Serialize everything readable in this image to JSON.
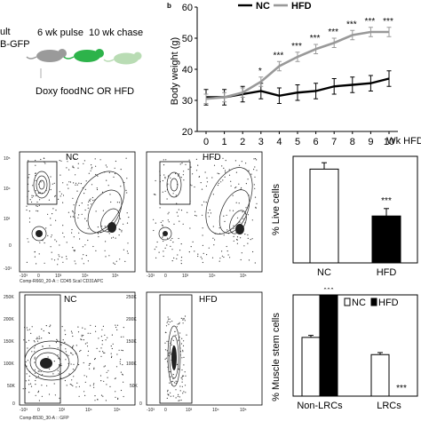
{
  "schematic": {
    "line1": "ult",
    "line2": "B-GFP",
    "pulse": "6 wk pulse",
    "chase": "10 wk chase",
    "doxy": "Doxy food",
    "diet": "NC OR HFD"
  },
  "panel_b_label": "b",
  "flow_top": {
    "gates": [
      "NC",
      "HFD"
    ],
    "xaxis": "Comp-R660_20-A :: CD45 ScaI CD31APC",
    "x_ticks": [
      "-10³",
      "0",
      "10³",
      "10⁴",
      "10⁵"
    ],
    "y_ticks": [
      "10⁵",
      "10⁴",
      "10³",
      "0",
      "-10³"
    ]
  },
  "flow_bottom": {
    "gates": [
      "NC",
      "HFD"
    ],
    "xaxis": "Comp-B530_30-A :: GFP",
    "y_ticks": [
      "250K",
      "200K",
      "150K",
      "100K",
      "50K",
      "0"
    ],
    "x_ticks": [
      "-10³",
      "0",
      "10³",
      "10⁴",
      "10⁵"
    ]
  },
  "chart_data": [
    {
      "type": "line",
      "ylabel": "Body weight (g)",
      "xlabel": "Wk HFD",
      "x": [
        0,
        1,
        2,
        3,
        4,
        5,
        6,
        7,
        8,
        9,
        10
      ],
      "ylim": [
        20,
        60
      ],
      "yticks": [
        20,
        30,
        40,
        50,
        60
      ],
      "legend": "top",
      "series": [
        {
          "name": "NC",
          "color": "#000000",
          "values": [
            31,
            31,
            32,
            33,
            31.5,
            32.5,
            33,
            34.5,
            35,
            35.5,
            37
          ],
          "errors": [
            2.5,
            2.5,
            2.5,
            2.5,
            2.5,
            2.5,
            2.5,
            2.5,
            2.5,
            2.5,
            2.5
          ]
        },
        {
          "name": "HFD",
          "color": "#999999",
          "values": [
            30.5,
            31,
            32.5,
            36,
            41,
            44,
            46.5,
            48.5,
            51,
            52,
            52
          ],
          "errors": [
            1.5,
            1.5,
            1.5,
            1.5,
            1.5,
            1.5,
            1.5,
            1.5,
            1.5,
            1.5,
            1.5
          ]
        }
      ],
      "annotations": [
        {
          "x": 3,
          "text": "*"
        },
        {
          "x": 4,
          "text": "***"
        },
        {
          "x": 5,
          "text": "***"
        },
        {
          "x": 6,
          "text": "***"
        },
        {
          "x": 7,
          "text": "***"
        },
        {
          "x": 8,
          "text": "***"
        },
        {
          "x": 9,
          "text": "***"
        },
        {
          "x": 10,
          "text": "***"
        }
      ]
    },
    {
      "type": "bar",
      "ylabel": "% Live cells",
      "categories": [
        "NC",
        "HFD"
      ],
      "values": [
        8.8,
        4.4
      ],
      "errors": [
        0.6,
        0.7
      ],
      "colors": [
        "#ffffff",
        "#000000"
      ],
      "ylim": [
        0,
        10
      ],
      "annotations": [
        {
          "category": "HFD",
          "text": "***"
        }
      ]
    },
    {
      "type": "bar",
      "ylabel": "% Muscle stem cells",
      "categories": [
        "Non-LRCs",
        "LRCs"
      ],
      "series": [
        {
          "name": "NC",
          "color": "#ffffff",
          "values": [
            58,
            41
          ],
          "errors": [
            2,
            2
          ]
        },
        {
          "name": "HFD",
          "color": "#000000",
          "values": [
            100,
            0
          ],
          "errors": [
            0,
            0
          ]
        }
      ],
      "ylim": [
        0,
        100
      ],
      "legend": "top",
      "annotations": [
        {
          "category": "Non-LRCs",
          "text": "***"
        },
        {
          "category": "LRCs",
          "text": "***"
        }
      ]
    }
  ]
}
